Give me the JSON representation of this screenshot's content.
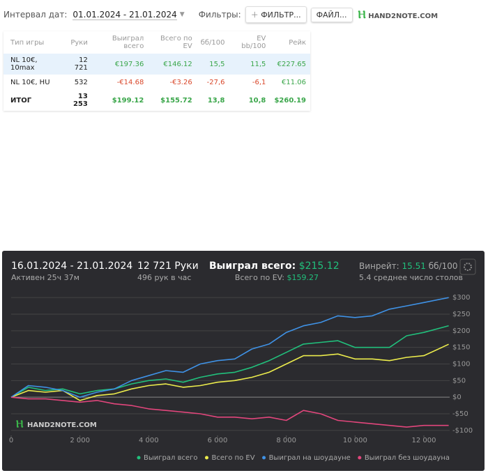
{
  "toolbar": {
    "interval_label": "Интервал дат:",
    "interval_value": "01.01.2024 - 21.01.2024",
    "filters_label": "Фильтры:",
    "filter_button": "ФИЛЬТР...",
    "file_button": "ФАЙЛ...",
    "logo": "HAND2NOTE.COM"
  },
  "table": {
    "header": [
      "Тип игры",
      "Руки",
      "Выиграл всего",
      "Всего по EV",
      "бб/100",
      "EV bb/100",
      "Рейк"
    ],
    "rows": [
      [
        "NL 10€, 10max",
        "12 721",
        "€197.36",
        "€146.12",
        "15,5",
        "11,5",
        "€227.65"
      ],
      [
        "NL 10€, HU",
        "532",
        "-€14.68",
        "-€3.26",
        "-27,6",
        "-6,1",
        "€11.06"
      ]
    ],
    "total": [
      "ИТОГ",
      "13 253",
      "$199.12",
      "$155.72",
      "13,8",
      "10,8",
      "$260.19"
    ]
  },
  "chart_panel": {
    "period": "16.01.2024 - 21.01.2024",
    "active": "Активен 25ч 37м",
    "hands": "12 721 Руки",
    "hands_per_hour": "496 рук в час",
    "won_label": "Выиграл всего:",
    "won_value": "$215.12",
    "ev_label": "Всего по EV:",
    "ev_value": "$159.27",
    "winrate_label": "Винрейт:",
    "winrate_value": "15.51",
    "winrate_unit": "бб/100",
    "tables": "5.4 среднее число столов",
    "logo": "HAND2NOTE.COM"
  },
  "chart_data": {
    "type": "line",
    "x": [
      0,
      500,
      1000,
      1500,
      2000,
      2500,
      3000,
      3500,
      4000,
      4500,
      5000,
      5500,
      6000,
      6500,
      7000,
      7500,
      8000,
      8500,
      9000,
      9500,
      10000,
      10500,
      11000,
      11500,
      12000,
      12721
    ],
    "xlim": [
      0,
      12750
    ],
    "xticks": [
      0,
      {
        "value": 2000,
        "label": "2 000"
      },
      {
        "value": 4000,
        "label": "4 000"
      },
      {
        "value": 6000,
        "label": "6 000"
      },
      {
        "value": 8000,
        "label": "8 000"
      },
      {
        "value": 10000,
        "label": "10 000"
      },
      {
        "value": 12000,
        "label": "12 000"
      }
    ],
    "ylim": [
      -115,
      315
    ],
    "yticks": [
      {
        "value": -100,
        "label": "-$100"
      },
      {
        "value": -50,
        "label": "-$50"
      },
      {
        "value": 0,
        "label": "$0"
      },
      {
        "value": 50,
        "label": "$50"
      },
      {
        "value": 100,
        "label": "$100"
      },
      {
        "value": 150,
        "label": "$150"
      },
      {
        "value": 200,
        "label": "$200"
      },
      {
        "value": 250,
        "label": "$250"
      },
      {
        "value": 300,
        "label": "$300"
      }
    ],
    "grid": true,
    "series": [
      {
        "name": "Выиграл всего",
        "color": "#21c07c",
        "values": [
          0,
          30,
          20,
          25,
          10,
          20,
          25,
          40,
          50,
          55,
          45,
          60,
          70,
          75,
          90,
          110,
          135,
          160,
          165,
          170,
          150,
          150,
          150,
          185,
          195,
          215.12
        ]
      },
      {
        "name": "Всего по EV",
        "color": "#ecec4c",
        "values": [
          0,
          20,
          15,
          20,
          -10,
          5,
          10,
          25,
          35,
          40,
          30,
          35,
          45,
          50,
          60,
          75,
          100,
          125,
          125,
          130,
          115,
          115,
          110,
          120,
          125,
          159.27
        ]
      },
      {
        "name": "Выиграл на шоудауне",
        "color": "#3f92e6",
        "values": [
          0,
          35,
          30,
          20,
          0,
          15,
          25,
          50,
          65,
          80,
          75,
          100,
          110,
          115,
          145,
          160,
          195,
          215,
          225,
          245,
          240,
          245,
          265,
          275,
          285,
          300
        ]
      },
      {
        "name": "Выиграл без шоудауна",
        "color": "#e2467c",
        "values": [
          0,
          -5,
          -5,
          -10,
          -15,
          -10,
          -20,
          -25,
          -35,
          -40,
          -45,
          -50,
          -60,
          -60,
          -65,
          -60,
          -70,
          -40,
          -50,
          -70,
          -75,
          -80,
          -85,
          -90,
          -85,
          -85
        ]
      }
    ]
  }
}
